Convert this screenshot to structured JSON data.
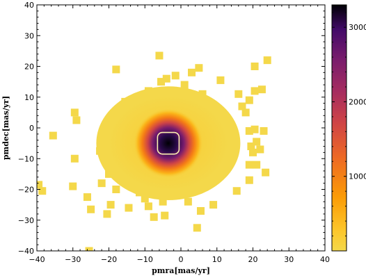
{
  "chart_data": {
    "type": "heatmap",
    "title": "",
    "xlabel": "pmra[mas/yr]",
    "ylabel": "pmdec[mas/yr]",
    "xlim": [
      -40,
      40
    ],
    "ylim": [
      -40,
      40
    ],
    "xticks": [
      -40,
      -30,
      -20,
      -10,
      0,
      10,
      20,
      30,
      40
    ],
    "yticks": [
      -40,
      -30,
      -20,
      -10,
      0,
      10,
      20,
      30,
      40
    ],
    "grid": false,
    "colorbar": {
      "colormap": "inferno_r",
      "vmin": 0,
      "vmax": 3300,
      "ticks": [
        1000,
        2000,
        3000
      ],
      "color_low": "#f4d84a",
      "color_high": "#000004"
    },
    "density_peak": {
      "pmra": -3.5,
      "pmdec": -5.0,
      "count": 3300
    },
    "core_width_mas_yr": 6,
    "halo_extent": {
      "pmra": [
        -22,
        18
      ],
      "pmdec": [
        -25,
        12
      ]
    },
    "outlier_points": [
      [
        -6,
        23.5
      ],
      [
        -18,
        19
      ],
      [
        -4,
        16
      ],
      [
        -1.5,
        17
      ],
      [
        3,
        18
      ],
      [
        5,
        19.5
      ],
      [
        24,
        22
      ],
      [
        20.5,
        20
      ],
      [
        11,
        15.5
      ],
      [
        -5.5,
        15
      ],
      [
        1,
        14
      ],
      [
        -9,
        12
      ],
      [
        6,
        11
      ],
      [
        16,
        11
      ],
      [
        20.5,
        12
      ],
      [
        22.5,
        12.5
      ],
      [
        19,
        9
      ],
      [
        -11,
        10
      ],
      [
        -15.5,
        8.5
      ],
      [
        17,
        7
      ],
      [
        18,
        5
      ],
      [
        -29.5,
        5
      ],
      [
        -29,
        2.5
      ],
      [
        -35.5,
        -2.5
      ],
      [
        19,
        -1
      ],
      [
        20.5,
        -0.5
      ],
      [
        23,
        -1
      ],
      [
        -21,
        -3
      ],
      [
        21,
        -4.5
      ],
      [
        19.5,
        -6
      ],
      [
        22,
        -7
      ],
      [
        -22.5,
        -7.5
      ],
      [
        20,
        -8
      ],
      [
        -29.5,
        -10
      ],
      [
        -19,
        -10
      ],
      [
        19,
        -12
      ],
      [
        21,
        -12
      ],
      [
        -20,
        -15
      ],
      [
        -17.5,
        -13
      ],
      [
        23.5,
        -14.5
      ],
      [
        19,
        -17
      ],
      [
        -22,
        -18
      ],
      [
        -39.5,
        -18.5
      ],
      [
        -38.5,
        -20.5
      ],
      [
        -30,
        -19
      ],
      [
        -13,
        -18.5
      ],
      [
        -18,
        -20
      ],
      [
        -11.5,
        -21
      ],
      [
        -26,
        -22.5
      ],
      [
        15.5,
        -20.5
      ],
      [
        -4,
        -22
      ],
      [
        -10,
        -23
      ],
      [
        -19.5,
        -25
      ],
      [
        -14.5,
        -26
      ],
      [
        -9,
        -25.5
      ],
      [
        -5,
        -24
      ],
      [
        -25,
        -26.5
      ],
      [
        2,
        -24
      ],
      [
        9,
        -25
      ],
      [
        5.5,
        -27
      ],
      [
        -20.5,
        -28
      ],
      [
        -7.5,
        -29
      ],
      [
        -4.5,
        -28.5
      ],
      [
        4.5,
        -32.5
      ],
      [
        -25.5,
        -40
      ]
    ]
  }
}
